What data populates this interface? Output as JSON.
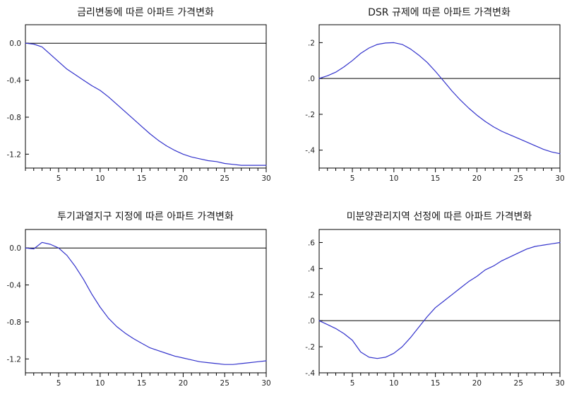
{
  "chart_data": [
    {
      "type": "line",
      "title": "금리변동에 따른 아파트 가격변화",
      "xlim": [
        1,
        30
      ],
      "ylim": [
        -1.35,
        0.2
      ],
      "x_ticks": [
        5,
        10,
        15,
        20,
        25,
        30
      ],
      "x_tick_labels": [
        "5",
        "10",
        "15",
        "20",
        "25",
        "30"
      ],
      "y_ticks": [
        0.0,
        -0.4,
        -0.8,
        -1.2
      ],
      "y_tick_labels": [
        "0.0",
        "-0.4",
        "-0.8",
        "-1.2"
      ],
      "zero_line": true,
      "grid": false,
      "line_color": "#3333cc",
      "series": [
        {
          "x": [
            1,
            2,
            3,
            4,
            5,
            6,
            7,
            8,
            9,
            10,
            11,
            12,
            13,
            14,
            15,
            16,
            17,
            18,
            19,
            20,
            21,
            22,
            23,
            24,
            25,
            26,
            27,
            28,
            29,
            30
          ],
          "values": [
            0.0,
            -0.01,
            -0.04,
            -0.12,
            -0.2,
            -0.28,
            -0.34,
            -0.4,
            -0.46,
            -0.51,
            -0.58,
            -0.66,
            -0.74,
            -0.82,
            -0.9,
            -0.98,
            -1.05,
            -1.11,
            -1.16,
            -1.2,
            -1.23,
            -1.25,
            -1.27,
            -1.28,
            -1.3,
            -1.31,
            -1.32,
            -1.32,
            -1.32,
            -1.32
          ]
        }
      ]
    },
    {
      "type": "line",
      "title": "DSR 규제에 따른 아파트 가격변화",
      "xlim": [
        1,
        30
      ],
      "ylim": [
        -0.5,
        0.3
      ],
      "x_ticks": [
        5,
        10,
        15,
        20,
        25,
        30
      ],
      "x_tick_labels": [
        "5",
        "10",
        "15",
        "20",
        "25",
        "30"
      ],
      "y_ticks": [
        0.2,
        0.0,
        -0.2,
        -0.4
      ],
      "y_tick_labels": [
        ".2",
        ".0",
        "-.2",
        "-.4"
      ],
      "zero_line": true,
      "grid": false,
      "line_color": "#3333cc",
      "series": [
        {
          "x": [
            1,
            2,
            3,
            4,
            5,
            6,
            7,
            8,
            9,
            10,
            11,
            12,
            13,
            14,
            15,
            16,
            17,
            18,
            19,
            20,
            21,
            22,
            23,
            24,
            25,
            26,
            27,
            28,
            29,
            30
          ],
          "values": [
            0.0,
            0.015,
            0.035,
            0.065,
            0.1,
            0.14,
            0.17,
            0.19,
            0.198,
            0.2,
            0.19,
            0.165,
            0.13,
            0.09,
            0.04,
            -0.015,
            -0.07,
            -0.12,
            -0.165,
            -0.205,
            -0.24,
            -0.27,
            -0.295,
            -0.315,
            -0.335,
            -0.355,
            -0.375,
            -0.395,
            -0.41,
            -0.42
          ]
        }
      ]
    },
    {
      "type": "line",
      "title": "투기과열지구 지정에 따른 아파트 가격변화",
      "xlim": [
        1,
        30
      ],
      "ylim": [
        -1.35,
        0.2
      ],
      "x_ticks": [
        5,
        10,
        15,
        20,
        25,
        30
      ],
      "x_tick_labels": [
        "5",
        "10",
        "15",
        "20",
        "25",
        "30"
      ],
      "y_ticks": [
        0.0,
        -0.4,
        -0.8,
        -1.2
      ],
      "y_tick_labels": [
        "0.0",
        "-0.4",
        "-0.8",
        "-1.2"
      ],
      "zero_line": true,
      "grid": false,
      "line_color": "#3333cc",
      "series": [
        {
          "x": [
            1,
            2,
            3,
            4,
            5,
            6,
            7,
            8,
            9,
            10,
            11,
            12,
            13,
            14,
            15,
            16,
            17,
            18,
            19,
            20,
            21,
            22,
            23,
            24,
            25,
            26,
            27,
            28,
            29,
            30
          ],
          "values": [
            0.0,
            -0.01,
            0.06,
            0.04,
            0.0,
            -0.08,
            -0.2,
            -0.34,
            -0.5,
            -0.64,
            -0.76,
            -0.85,
            -0.92,
            -0.98,
            -1.03,
            -1.08,
            -1.11,
            -1.14,
            -1.17,
            -1.19,
            -1.21,
            -1.23,
            -1.24,
            -1.25,
            -1.26,
            -1.26,
            -1.25,
            -1.24,
            -1.23,
            -1.22
          ]
        }
      ]
    },
    {
      "type": "line",
      "title": "미분양관리지역 선정에 따른 아파트 가격변화",
      "xlim": [
        1,
        30
      ],
      "ylim": [
        -0.4,
        0.7
      ],
      "x_ticks": [
        5,
        10,
        15,
        20,
        25,
        30
      ],
      "x_tick_labels": [
        "5",
        "10",
        "15",
        "20",
        "25",
        "30"
      ],
      "y_ticks": [
        0.6,
        0.4,
        0.2,
        0.0,
        -0.2,
        -0.4
      ],
      "y_tick_labels": [
        ".6",
        ".4",
        ".2",
        ".0",
        "-.2",
        "-.4"
      ],
      "zero_line": true,
      "grid": false,
      "line_color": "#3333cc",
      "series": [
        {
          "x": [
            1,
            2,
            3,
            4,
            5,
            6,
            7,
            8,
            9,
            10,
            11,
            12,
            13,
            14,
            15,
            16,
            17,
            18,
            19,
            20,
            21,
            22,
            23,
            24,
            25,
            26,
            27,
            28,
            29,
            30
          ],
          "values": [
            0.0,
            -0.03,
            -0.06,
            -0.1,
            -0.15,
            -0.24,
            -0.28,
            -0.29,
            -0.28,
            -0.25,
            -0.2,
            -0.13,
            -0.05,
            0.03,
            0.1,
            0.15,
            0.2,
            0.25,
            0.3,
            0.34,
            0.39,
            0.42,
            0.46,
            0.49,
            0.52,
            0.55,
            0.57,
            0.58,
            0.59,
            0.6
          ]
        }
      ]
    }
  ]
}
